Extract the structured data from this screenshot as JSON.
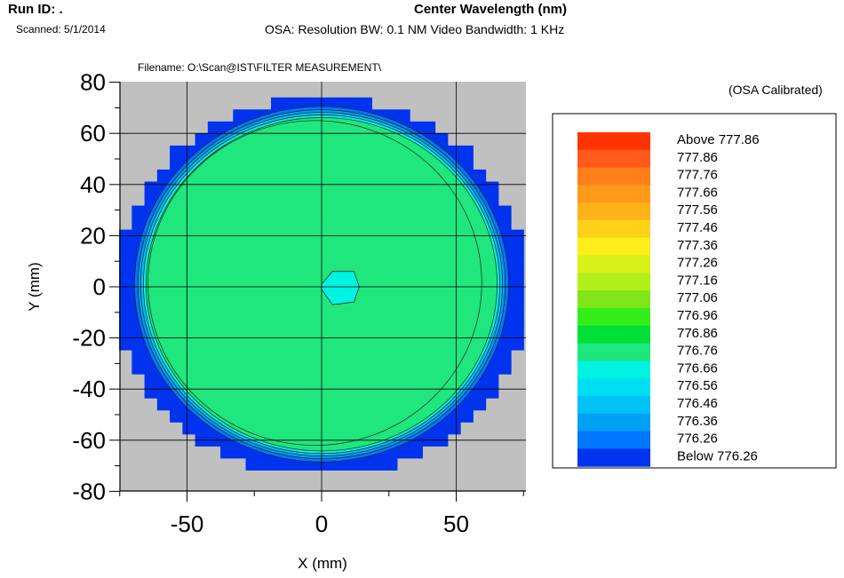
{
  "header": {
    "run_id": "Run ID: .",
    "scanned": "Scanned: 5/1/2014",
    "title": "Center Wavelength (nm)",
    "osa_line": "OSA: Resolution BW: 0.1 NM    Video Bandwidth: 1 KHz",
    "filename": "Filename: O:\\Scan@IST\\FILTER MEASUREMENT\\",
    "calibrated": "(OSA Calibrated)"
  },
  "chart_data": {
    "type": "heatmap",
    "title": "Center Wavelength (nm)",
    "xlabel": "X (mm)",
    "ylabel": "Y (mm)",
    "xlim": [
      -80,
      80
    ],
    "ylim": [
      -80,
      80
    ],
    "xticks": [
      -50,
      0,
      50
    ],
    "yticks": [
      80,
      60,
      40,
      20,
      0,
      -20,
      -40,
      -60,
      -80
    ],
    "grid": true,
    "legend_position": "right",
    "background_color": "#c0c0c0",
    "legend": [
      {
        "label": "Above 777.86",
        "color": "#ff3300"
      },
      {
        "label": "777.86",
        "color": "#ff5a1a"
      },
      {
        "label": "777.76",
        "color": "#ff7f1a"
      },
      {
        "label": "777.66",
        "color": "#ff9a1a"
      },
      {
        "label": "777.56",
        "color": "#ffb31a"
      },
      {
        "label": "777.46",
        "color": "#ffd21a"
      },
      {
        "label": "777.36",
        "color": "#ffee1a"
      },
      {
        "label": "777.26",
        "color": "#d9f21a"
      },
      {
        "label": "777.16",
        "color": "#b3ef1a"
      },
      {
        "label": "777.06",
        "color": "#80e61a"
      },
      {
        "label": "776.96",
        "color": "#33ee1a"
      },
      {
        "label": "776.86",
        "color": "#00e038"
      },
      {
        "label": "776.76",
        "color": "#1fe67d"
      },
      {
        "label": "776.66",
        "color": "#00f2e0"
      },
      {
        "label": "776.56",
        "color": "#00def2"
      },
      {
        "label": "776.46",
        "color": "#00c2f5"
      },
      {
        "label": "776.36",
        "color": "#00a0f5"
      },
      {
        "label": "776.26",
        "color": "#0077ff"
      },
      {
        "label": "Below 776.26",
        "color": "#0033ee"
      }
    ],
    "zones": [
      {
        "label": "Below 776.26",
        "color": "#0033ee"
      },
      {
        "label": "776.26",
        "color": "#0077ff"
      },
      {
        "label": "776.36",
        "color": "#00a0f5"
      },
      {
        "label": "776.46",
        "color": "#00c2f5"
      },
      {
        "label": "776.66",
        "color": "#00f2e0"
      },
      {
        "label": "776.76",
        "color": "#1fe67d"
      }
    ]
  }
}
